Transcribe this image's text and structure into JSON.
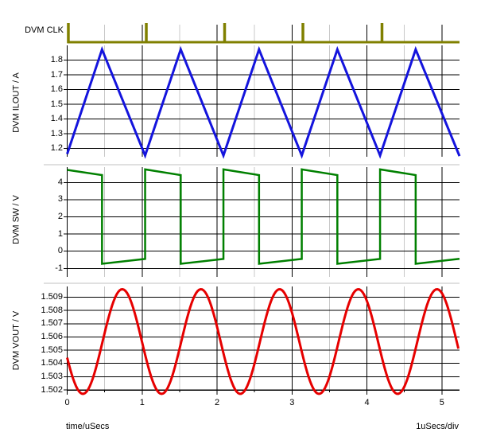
{
  "window": {
    "background": "#ffffff",
    "grid_major_color": "#000000",
    "grid_minor_color": "#c8c8c8",
    "separator_color": "#c0c0c0"
  },
  "x_axis": {
    "label": "time/uSecs",
    "scale_note": "1uSecs/div",
    "major_ticks": [
      "0",
      "1",
      "2",
      "3",
      "4",
      "5"
    ],
    "minor_ticks": [
      0.5,
      1.5,
      2.5,
      3.5,
      4.5
    ],
    "range_us": [
      0,
      5.235
    ]
  },
  "chart_data": [
    {
      "panel": "clk",
      "type": "digital",
      "label": "DVM CLK",
      "color": "#808000",
      "baseline_level": "low",
      "pulse_period_us": 1.045,
      "pulse_times_us": [
        0.005,
        1.045,
        2.09,
        3.135,
        4.19
      ]
    },
    {
      "panel": "ilout",
      "type": "line",
      "ylabel": "DVM ILOUT / A",
      "color": "#1414dd",
      "yticks": [
        "1.8",
        "1.7",
        "1.6",
        "1.5",
        "1.4",
        "1.3",
        "1.2"
      ],
      "ylim": [
        1.14,
        1.9
      ],
      "points": [
        [
          0,
          1.162
        ],
        [
          0.465,
          1.872
        ],
        [
          1.04,
          1.152
        ],
        [
          1.515,
          1.872
        ],
        [
          2.085,
          1.152
        ],
        [
          2.56,
          1.872
        ],
        [
          3.13,
          1.152
        ],
        [
          3.605,
          1.872
        ],
        [
          4.175,
          1.152
        ],
        [
          4.65,
          1.872
        ],
        [
          5.235,
          1.148
        ]
      ]
    },
    {
      "panel": "sw",
      "type": "line",
      "ylabel": "DVM SW / V",
      "color": "#008000",
      "yticks": [
        "4",
        "3",
        "2",
        "1",
        "0",
        "-1"
      ],
      "ylim": [
        -1.5,
        4.9
      ],
      "points": [
        [
          0,
          4.73
        ],
        [
          0.465,
          4.43
        ],
        [
          0.465,
          -0.73
        ],
        [
          1.04,
          -0.45
        ],
        [
          1.04,
          4.76
        ],
        [
          1.515,
          4.43
        ],
        [
          1.515,
          -0.73
        ],
        [
          2.085,
          -0.45
        ],
        [
          2.085,
          4.76
        ],
        [
          2.56,
          4.43
        ],
        [
          2.56,
          -0.73
        ],
        [
          3.13,
          -0.45
        ],
        [
          3.13,
          4.76
        ],
        [
          3.605,
          4.43
        ],
        [
          3.605,
          -0.73
        ],
        [
          4.175,
          -0.45
        ],
        [
          4.175,
          4.76
        ],
        [
          4.65,
          4.43
        ],
        [
          4.65,
          -0.73
        ],
        [
          5.235,
          -0.44
        ]
      ]
    },
    {
      "panel": "vout",
      "type": "sine",
      "ylabel": "DVM VOUT / V",
      "color": "#e60000",
      "yticks": [
        "1.509",
        "1.508",
        "1.507",
        "1.506",
        "1.505",
        "1.504",
        "1.503",
        "1.502"
      ],
      "ylim": [
        1.5015,
        1.5098
      ],
      "sine": {
        "mid": 1.50565,
        "amplitude": 0.00395,
        "period_us": 1.05,
        "peak_time_us": 0.735
      }
    }
  ]
}
